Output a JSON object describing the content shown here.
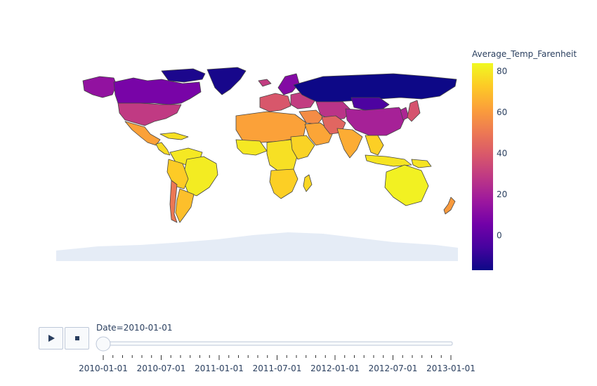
{
  "chart_data": {
    "type": "choropleth",
    "title": "",
    "colorbar": {
      "title": "Average_Temp_Farenheit",
      "range": [
        -17,
        84
      ],
      "tickvals": [
        0,
        20,
        40,
        60,
        80
      ],
      "ticktext": [
        "0",
        "20",
        "40",
        "60",
        "80"
      ],
      "colorscale": [
        "#0d0887",
        "#46039f",
        "#7201a8",
        "#9c179e",
        "#bd3786",
        "#d8576b",
        "#ed7953",
        "#fb9f3a",
        "#fdca26",
        "#f0f921"
      ]
    },
    "regions": [
      {
        "name": "Greenland",
        "value": -15
      },
      {
        "name": "Northern Canada",
        "value": -14
      },
      {
        "name": "Alaska",
        "value": 14
      },
      {
        "name": "Canada",
        "value": 7
      },
      {
        "name": "United States",
        "value": 29
      },
      {
        "name": "Mexico",
        "value": 62
      },
      {
        "name": "Central America",
        "value": 77
      },
      {
        "name": "Caribbean",
        "value": 78
      },
      {
        "name": "South America North",
        "value": 80
      },
      {
        "name": "Brazil",
        "value": 81
      },
      {
        "name": "Peru Bolivia",
        "value": 73
      },
      {
        "name": "Argentina",
        "value": 70
      },
      {
        "name": "Chile",
        "value": 50
      },
      {
        "name": "Iceland",
        "value": 30
      },
      {
        "name": "Scandinavia",
        "value": 10
      },
      {
        "name": "Western Europe",
        "value": 39
      },
      {
        "name": "Eastern Europe",
        "value": 30
      },
      {
        "name": "Russia",
        "value": -17
      },
      {
        "name": "North Africa",
        "value": 62
      },
      {
        "name": "West Africa",
        "value": 80
      },
      {
        "name": "Central Africa",
        "value": 78
      },
      {
        "name": "East Africa",
        "value": 75
      },
      {
        "name": "Southern Africa",
        "value": 74
      },
      {
        "name": "Madagascar",
        "value": 76
      },
      {
        "name": "Middle East",
        "value": 56
      },
      {
        "name": "Arabian Peninsula",
        "value": 63
      },
      {
        "name": "Central Asia",
        "value": 27
      },
      {
        "name": "Iran",
        "value": 44
      },
      {
        "name": "Mongolia",
        "value": -4
      },
      {
        "name": "China",
        "value": 20
      },
      {
        "name": "India",
        "value": 65
      },
      {
        "name": "Southeast Asia",
        "value": 74
      },
      {
        "name": "Korea",
        "value": 22
      },
      {
        "name": "Japan",
        "value": 38
      },
      {
        "name": "Indonesia",
        "value": 79
      },
      {
        "name": "Papua New Guinea",
        "value": 79
      },
      {
        "name": "Australia",
        "value": 82
      },
      {
        "name": "New Zealand",
        "value": 60
      },
      {
        "name": "Antarctica",
        "value": null
      }
    ]
  },
  "animation": {
    "current_label": "Date=2010-01-01",
    "current_index": 0,
    "ticks": [
      "2010-01-01",
      "2010-07-01",
      "2011-01-01",
      "2011-07-01",
      "2012-01-01",
      "2012-07-01",
      "2013-01-01"
    ],
    "play_icon": "play-icon",
    "stop_icon": "stop-icon"
  }
}
